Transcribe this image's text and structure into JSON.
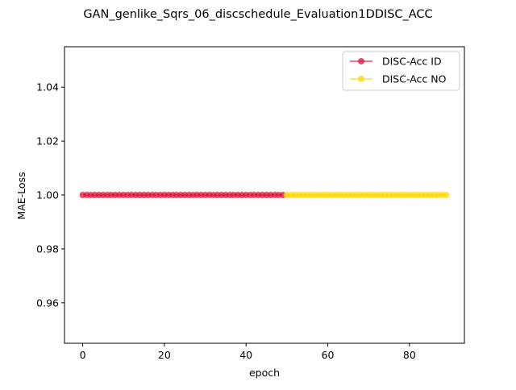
{
  "chart_data": {
    "type": "line",
    "title": "GAN_genlike_Sqrs_06_discschedule_Evaluation1DDISC_ACC",
    "xlabel": "epoch",
    "ylabel": "MAE-Loss",
    "xlim": [
      -4.45,
      93.45
    ],
    "ylim": [
      0.945,
      1.055
    ],
    "xticks": [
      0,
      20,
      40,
      60,
      80
    ],
    "yticks": [
      0.96,
      0.98,
      1.0,
      1.02,
      1.04
    ],
    "xtick_labels": [
      "0",
      "20",
      "40",
      "60",
      "80"
    ],
    "ytick_labels": [
      "0.96",
      "0.98",
      "1.00",
      "1.02",
      "1.04"
    ],
    "grid": false,
    "legend_position": "top-right",
    "series": [
      {
        "name": "DISC-Acc ID",
        "color": "#dc143c",
        "x": [
          0,
          1,
          2,
          3,
          4,
          5,
          6,
          7,
          8,
          9,
          10,
          11,
          12,
          13,
          14,
          15,
          16,
          17,
          18,
          19,
          20,
          21,
          22,
          23,
          24,
          25,
          26,
          27,
          28,
          29,
          30,
          31,
          32,
          33,
          34,
          35,
          36,
          37,
          38,
          39,
          40,
          41,
          42,
          43,
          44,
          45,
          46,
          47,
          48,
          49
        ],
        "y": [
          1,
          1,
          1,
          1,
          1,
          1,
          1,
          1,
          1,
          1,
          1,
          1,
          1,
          1,
          1,
          1,
          1,
          1,
          1,
          1,
          1,
          1,
          1,
          1,
          1,
          1,
          1,
          1,
          1,
          1,
          1,
          1,
          1,
          1,
          1,
          1,
          1,
          1,
          1,
          1,
          1,
          1,
          1,
          1,
          1,
          1,
          1,
          1,
          1,
          1
        ]
      },
      {
        "name": "DISC-Acc NO",
        "color": "#ffd700",
        "x": [
          50,
          51,
          52,
          53,
          54,
          55,
          56,
          57,
          58,
          59,
          60,
          61,
          62,
          63,
          64,
          65,
          66,
          67,
          68,
          69,
          70,
          71,
          72,
          73,
          74,
          75,
          76,
          77,
          78,
          79,
          80,
          81,
          82,
          83,
          84,
          85,
          86,
          87,
          88,
          89
        ],
        "y": [
          1,
          1,
          1,
          1,
          1,
          1,
          1,
          1,
          1,
          1,
          1,
          1,
          1,
          1,
          1,
          1,
          1,
          1,
          1,
          1,
          1,
          1,
          1,
          1,
          1,
          1,
          1,
          1,
          1,
          1,
          1,
          1,
          1,
          1,
          1,
          1,
          1,
          1,
          1,
          1
        ]
      }
    ]
  }
}
